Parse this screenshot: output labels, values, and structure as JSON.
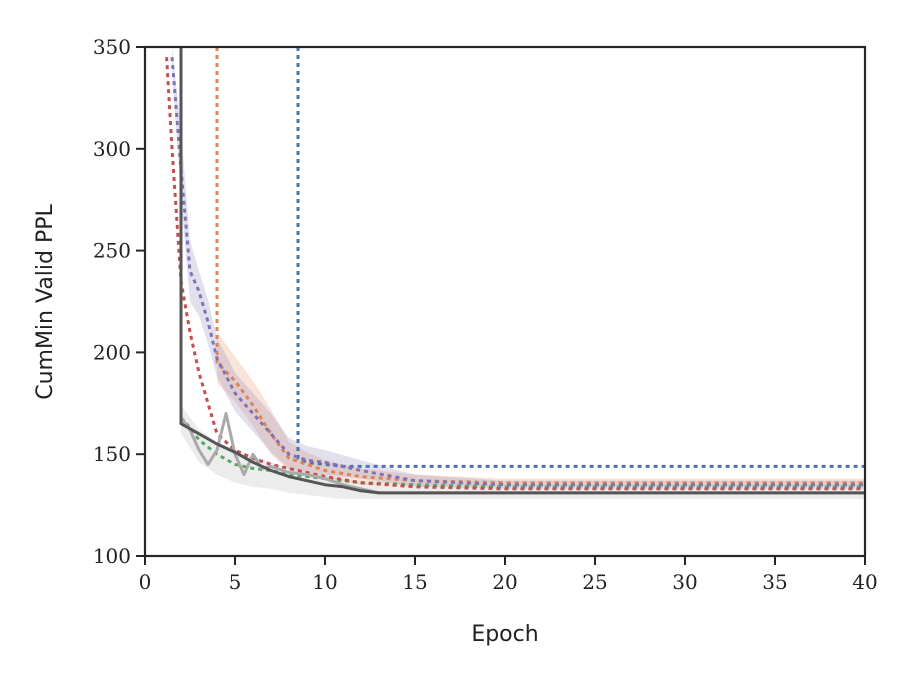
{
  "chart_data": {
    "type": "line",
    "xlabel": "Epoch",
    "ylabel": "CumMin Valid PPL",
    "xlim": [
      0,
      40
    ],
    "ylim": [
      100,
      350
    ],
    "xticks": [
      0,
      5,
      10,
      15,
      20,
      25,
      30,
      35,
      40
    ],
    "yticks": [
      100,
      150,
      200,
      250,
      300,
      350
    ],
    "grid": false,
    "legend": "none",
    "series": [
      {
        "color": "#4c72b0",
        "style": "dotted",
        "x": [
          8.5,
          8.5,
          9,
          10,
          11,
          12,
          15,
          20,
          25,
          30,
          35,
          40
        ],
        "y": [
          350,
          148,
          146,
          145,
          144,
          144,
          144,
          144,
          144,
          144,
          144,
          144
        ]
      },
      {
        "color": "#dd8452",
        "style": "dotted",
        "x": [
          4,
          4,
          5,
          6,
          7,
          8,
          9,
          10,
          12,
          15,
          20,
          25,
          30,
          35,
          40
        ],
        "y": [
          350,
          195,
          186,
          174,
          160,
          148,
          145,
          142,
          139,
          137,
          136,
          136,
          136,
          136,
          136
        ],
        "band": [
          [
            4,
            210,
            185
          ],
          [
            5,
            198,
            176
          ],
          [
            6,
            186,
            164
          ],
          [
            7,
            172,
            150
          ],
          [
            8,
            156,
            142
          ],
          [
            9,
            151,
            140
          ],
          [
            10,
            147,
            138
          ],
          [
            12,
            143,
            135
          ],
          [
            15,
            140,
            134
          ],
          [
            20,
            138,
            134
          ],
          [
            25,
            138,
            134
          ],
          [
            30,
            138,
            134
          ],
          [
            35,
            138,
            134
          ],
          [
            40,
            138,
            134
          ]
        ]
      },
      {
        "color": "#55a868",
        "style": "dotted",
        "x": [
          2,
          2.5,
          3,
          4,
          5,
          6,
          7,
          8,
          10,
          12,
          15,
          20,
          25,
          30,
          35,
          40
        ],
        "y": [
          168,
          163,
          157,
          150,
          145,
          143,
          142,
          140,
          138,
          136,
          135,
          134,
          134,
          134,
          134,
          134
        ]
      },
      {
        "color": "#c44e52",
        "style": "dotted",
        "x": [
          1.2,
          1.5,
          2,
          2.5,
          3,
          3.5,
          4,
          5,
          6,
          7,
          8,
          9,
          10,
          12,
          15,
          20,
          25,
          30,
          35,
          40
        ],
        "y": [
          345,
          300,
          235,
          210,
          190,
          175,
          160,
          152,
          148,
          145,
          143,
          141,
          139,
          136,
          134,
          133,
          133,
          133,
          133,
          133
        ]
      },
      {
        "color": "#8172b3",
        "style": "dotted",
        "x": [
          1.5,
          2,
          2.5,
          3,
          3.5,
          4,
          5,
          6,
          7,
          8,
          9,
          10,
          12,
          15,
          20,
          25,
          30,
          35,
          40
        ],
        "y": [
          345,
          290,
          240,
          230,
          215,
          197,
          180,
          170,
          160,
          150,
          147,
          146,
          142,
          137,
          135,
          135,
          135,
          135,
          135
        ],
        "band": [
          [
            1.5,
            350,
            340
          ],
          [
            2,
            310,
            275
          ],
          [
            2.5,
            255,
            225
          ],
          [
            3,
            240,
            218
          ],
          [
            3.5,
            226,
            204
          ],
          [
            4,
            207,
            188
          ],
          [
            5,
            190,
            171
          ],
          [
            6,
            180,
            161
          ],
          [
            7,
            170,
            151
          ],
          [
            8,
            158,
            143
          ],
          [
            9,
            154,
            141
          ],
          [
            10,
            152,
            140
          ],
          [
            12,
            147,
            138
          ],
          [
            15,
            140,
            134
          ],
          [
            20,
            137,
            133
          ],
          [
            25,
            137,
            133
          ],
          [
            30,
            137,
            133
          ],
          [
            35,
            137,
            133
          ],
          [
            40,
            137,
            133
          ]
        ]
      },
      {
        "color": "#aaaaaa",
        "style": "solid",
        "x": [
          2,
          2.5,
          3,
          3.5,
          4,
          4.5,
          5,
          5.5,
          6,
          6.5,
          7,
          8,
          9,
          10,
          11,
          12,
          13,
          15,
          20,
          30,
          40
        ],
        "y": [
          168,
          162,
          152,
          145,
          152,
          170,
          150,
          140,
          150,
          143,
          144,
          141,
          140,
          138,
          135,
          133,
          131,
          131,
          131,
          131,
          131
        ],
        "band": [
          [
            2,
            174,
            160
          ],
          [
            3,
            162,
            146
          ],
          [
            4,
            156,
            140
          ],
          [
            5,
            152,
            136
          ],
          [
            6,
            149,
            134
          ],
          [
            7,
            146,
            133
          ],
          [
            8,
            143,
            131
          ],
          [
            9,
            141,
            130
          ],
          [
            10,
            140,
            129
          ],
          [
            11,
            138,
            128
          ],
          [
            12,
            136,
            128
          ],
          [
            13,
            135,
            128
          ],
          [
            15,
            134,
            128
          ],
          [
            20,
            134,
            128
          ],
          [
            30,
            134,
            128
          ],
          [
            40,
            134,
            128
          ]
        ]
      },
      {
        "color": "#555555",
        "style": "solid",
        "x": [
          2,
          2,
          2,
          3,
          4,
          5,
          6,
          7,
          8,
          9,
          10,
          11,
          12,
          13,
          15,
          20,
          25,
          30,
          35,
          40
        ],
        "y": [
          350,
          168,
          165,
          160,
          155,
          151,
          146,
          142,
          139,
          137,
          135,
          134,
          132,
          131,
          131,
          131,
          131,
          131,
          131,
          131
        ]
      }
    ]
  }
}
